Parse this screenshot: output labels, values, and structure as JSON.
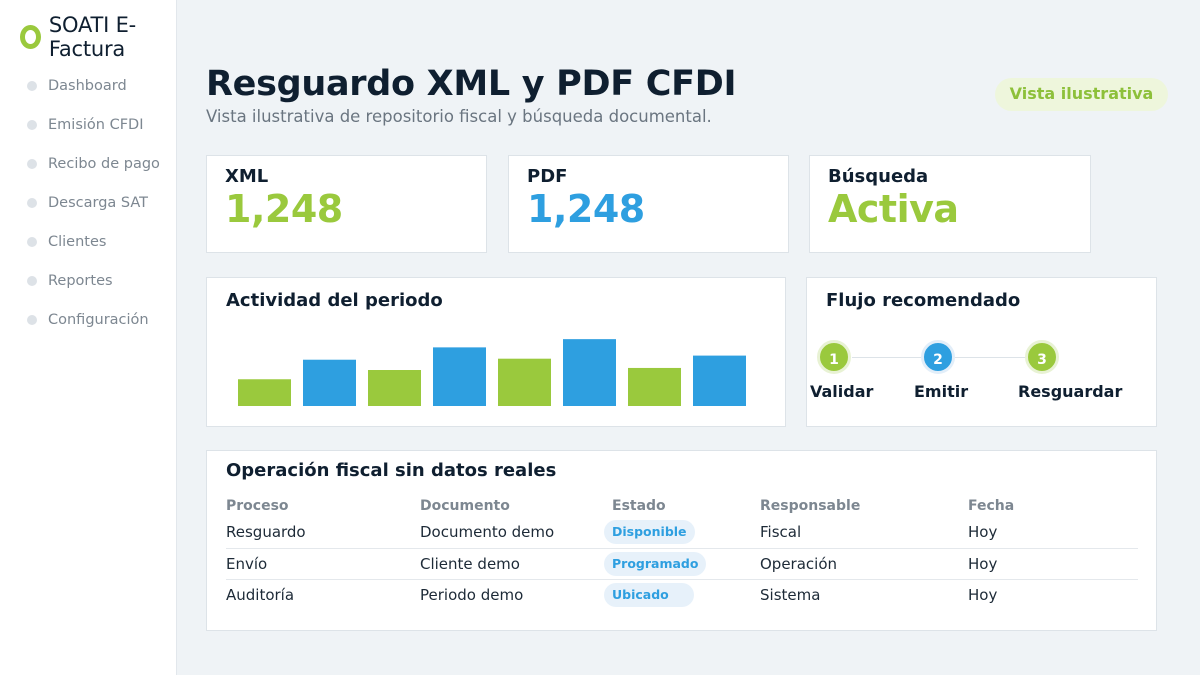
{
  "app": {
    "title": "SOATI E-Factura"
  },
  "sidebar": {
    "items": [
      {
        "label": "Dashboard"
      },
      {
        "label": "Emisión CFDI"
      },
      {
        "label": "Recibo de pago"
      },
      {
        "label": "Descarga SAT"
      },
      {
        "label": "Clientes"
      },
      {
        "label": "Reportes"
      },
      {
        "label": "Configuración"
      }
    ]
  },
  "header": {
    "title": "Resguardo XML y PDF CFDI",
    "subtitle": "Vista ilustrativa de repositorio fiscal y búsqueda documental.",
    "badge": "Vista ilustrativa"
  },
  "stats": [
    {
      "label": "XML",
      "value": "1,248",
      "color": "#9ac93d"
    },
    {
      "label": "PDF",
      "value": "1,248",
      "color": "#2e9fe0"
    },
    {
      "label": "Búsqueda",
      "value": "Activa",
      "color": "#9ac93d"
    }
  ],
  "activity": {
    "title": "Actividad del periodo"
  },
  "chart_data": {
    "type": "bar",
    "title": "Actividad del periodo",
    "categories": [
      "",
      "",
      "",
      "",
      "",
      "",
      "",
      ""
    ],
    "values": [
      26,
      45,
      35,
      57,
      46,
      65,
      37,
      49
    ],
    "colors": [
      "#9ac93d",
      "#2e9fe0",
      "#9ac93d",
      "#2e9fe0",
      "#9ac93d",
      "#2e9fe0",
      "#9ac93d",
      "#2e9fe0"
    ],
    "ylim": [
      0,
      70
    ],
    "xlabel": "",
    "ylabel": "",
    "grid": false,
    "legend": "none"
  },
  "flow": {
    "title": "Flujo recomendado",
    "steps": [
      {
        "number": "1",
        "label": "Validar",
        "color": "#9ac93d"
      },
      {
        "number": "2",
        "label": "Emitir",
        "color": "#2e9fe0"
      },
      {
        "number": "3",
        "label": "Resguardar",
        "color": "#9ac93d"
      }
    ]
  },
  "operations": {
    "title": "Operación fiscal sin datos reales",
    "columns": [
      "Proceso",
      "Documento",
      "Estado",
      "Responsable",
      "Fecha"
    ],
    "rows": [
      {
        "proceso": "Resguardo",
        "documento": "Documento demo",
        "estado": "Disponible",
        "responsable": "Fiscal",
        "fecha": "Hoy"
      },
      {
        "proceso": "Envío",
        "documento": "Cliente demo",
        "estado": "Programado",
        "responsable": "Operación",
        "fecha": "Hoy"
      },
      {
        "proceso": "Auditoría",
        "documento": "Periodo demo",
        "estado": "Ubicado",
        "responsable": "Sistema",
        "fecha": "Hoy"
      }
    ]
  }
}
